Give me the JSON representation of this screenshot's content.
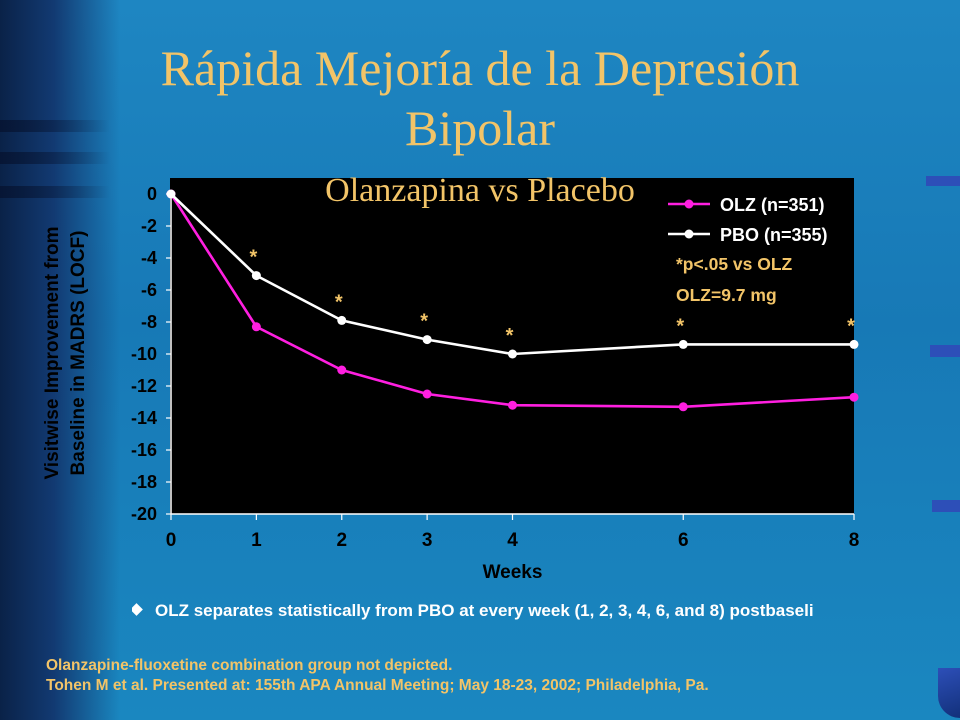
{
  "slide": {
    "title": "Rápida Mejoría de la Depresión Bipolar",
    "subtitle": "Olanzapina vs Placebo",
    "bullet": "OLZ separates statistically from PBO at every week (1, 2, 3, 4, 6, and 8) postbaseli",
    "footnotes": [
      "Olanzapine-fluoxetine combination group not depicted.",
      "Tohen M et al. Presented at: 155th APA Annual Meeting; May 18-23, 2002; Philadelphia, Pa."
    ]
  },
  "chart_data": {
    "type": "line",
    "xlabel": "Weeks",
    "ylabel_lines": [
      "Visitwise Improvement from",
      "Baseline in MADRS (LOCF)"
    ],
    "x": [
      0,
      1,
      2,
      3,
      4,
      6,
      8
    ],
    "x_ticks": [
      0,
      1,
      2,
      3,
      4,
      6,
      8
    ],
    "xlim": [
      0,
      8
    ],
    "ylim": [
      -20,
      0
    ],
    "y_ticks": [
      0,
      -2,
      -4,
      -6,
      -8,
      -10,
      -12,
      -14,
      -16,
      -18,
      -20
    ],
    "grid": false,
    "series": [
      {
        "name": "OLZ (n=351)",
        "color": "#ff1fe0",
        "values": [
          0,
          -8.3,
          -11.0,
          -12.5,
          -13.2,
          -13.3,
          -12.7
        ]
      },
      {
        "name": "PBO (n=355)",
        "color": "#ffffff",
        "values": [
          0,
          -5.1,
          -7.9,
          -9.1,
          -10.0,
          -9.4,
          -9.4
        ]
      }
    ],
    "significance_marker": "*",
    "significant_x": [
      1,
      2,
      3,
      4,
      6,
      8
    ],
    "marker_color": "#f2c468",
    "legend_position": "top-right",
    "annotations": [
      "*p<.05 vs OLZ",
      "OLZ=9.7 mg"
    ],
    "background": "#000000",
    "axis_color": "#ffffff",
    "tick_label_color": "#000000"
  }
}
